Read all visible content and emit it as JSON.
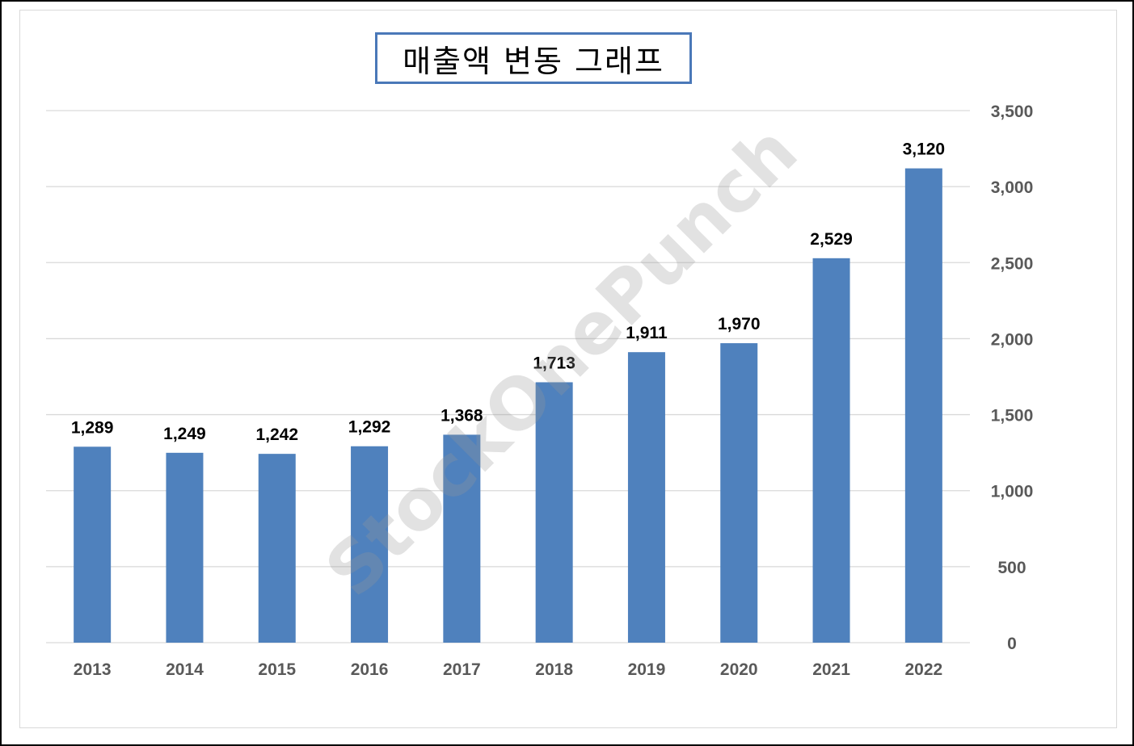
{
  "chart_data": {
    "type": "bar",
    "title": "매출액 변동 그래프",
    "categories": [
      "2013",
      "2014",
      "2015",
      "2016",
      "2017",
      "2018",
      "2019",
      "2020",
      "2021",
      "2022"
    ],
    "series": [
      {
        "values": [
          1289,
          1249,
          1242,
          1292,
          1368,
          1713,
          1911,
          1970,
          2529,
          3120
        ],
        "color": "#4f81bd"
      }
    ],
    "data_labels": [
      "1,289",
      "1,249",
      "1,242",
      "1,292",
      "1,368",
      "1,713",
      "1,911",
      "1,970",
      "2,529",
      "3,120"
    ],
    "ylim": [
      0,
      3500
    ],
    "y_ticks": [
      0,
      500,
      1000,
      1500,
      2000,
      2500,
      3000,
      3500
    ],
    "y_tick_labels": [
      "0",
      "500",
      "1,000",
      "1,500",
      "2,000",
      "2,500",
      "3,000",
      "3,500"
    ],
    "y_axis_side": "right",
    "xlabel": "",
    "ylabel": "",
    "grid": true,
    "legend": "none"
  },
  "watermark": "StockOnePunch",
  "colors": {
    "bar": "#4f81bd",
    "title_border": "#4a78b8",
    "gridline": "#d9d9d9",
    "axis_text": "#595959",
    "label_text": "#000000"
  }
}
